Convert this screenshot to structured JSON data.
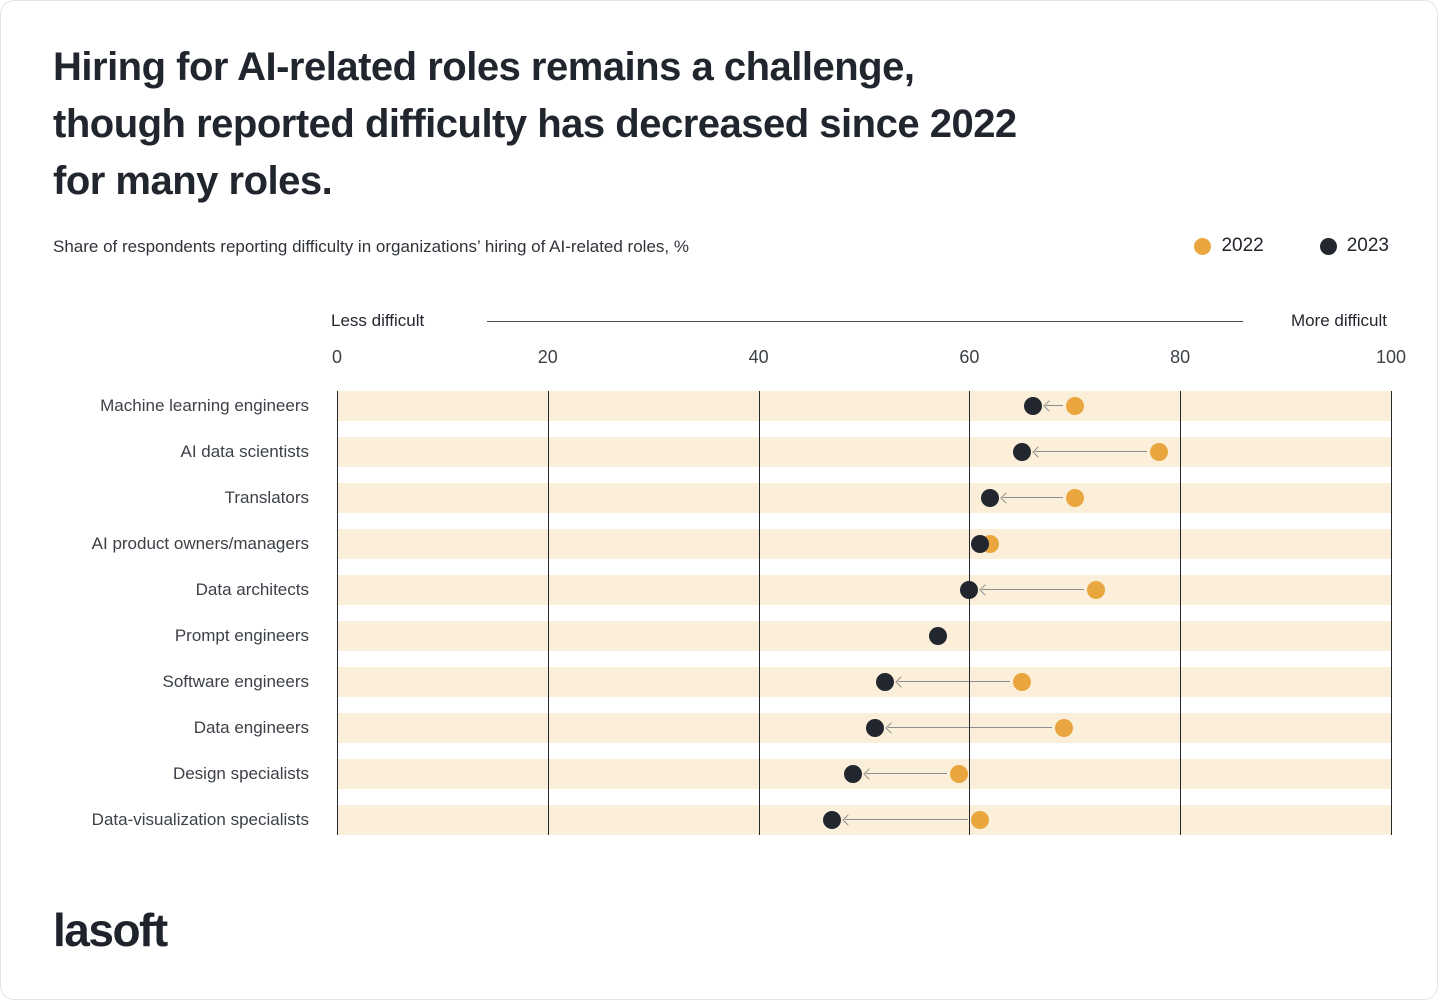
{
  "card": {
    "title": "Hiring for AI-related roles remains a challenge,\nthough reported difficulty has decreased since 2022\nfor many roles.",
    "subtitle": "Share of respondents reporting difficulty in organizations’ hiring of AI-related roles, %",
    "logo_text": "lasoft"
  },
  "legend": [
    {
      "label": "2022",
      "color": "#e9a63e"
    },
    {
      "label": "2023",
      "color": "#22262e"
    }
  ],
  "axis": {
    "left_label": "Less difficult",
    "right_label": "More difficult"
  },
  "colors": {
    "band": "#fcefd9",
    "gridline": "#23272e",
    "arrow": "#8e8e8e",
    "series_2022": "#e9a63e",
    "series_2023": "#22262e"
  },
  "chart_data": {
    "type": "scatter",
    "subtype": "dumbbell-dot-plot",
    "title": "Hiring for AI-related roles remains a challenge, though reported difficulty has decreased since 2022 for many roles.",
    "subtitle": "Share of respondents reporting difficulty in organizations’ hiring of AI-related roles, %",
    "xlabel_left": "Less difficult",
    "xlabel_right": "More difficult",
    "xlim": [
      0,
      100
    ],
    "xticks": [
      0,
      20,
      40,
      60,
      80,
      100
    ],
    "grid": "vertical",
    "legend_position": "top-right",
    "categories": [
      "Machine learning engineers",
      "AI data scientists",
      "Translators",
      "AI product owners/managers",
      "Data architects",
      "Prompt engineers",
      "Software engineers",
      "Data engineers",
      "Design specialists",
      "Data-visualization specialists"
    ],
    "series": [
      {
        "name": "2022",
        "color": "#e9a63e",
        "values": [
          70,
          78,
          70,
          62,
          72,
          null,
          65,
          69,
          59,
          61
        ]
      },
      {
        "name": "2023",
        "color": "#22262e",
        "values": [
          66,
          65,
          62,
          61,
          60,
          57,
          52,
          51,
          49,
          47
        ]
      }
    ],
    "annotation": "gray arrows point from 2022 value to 2023 value"
  }
}
